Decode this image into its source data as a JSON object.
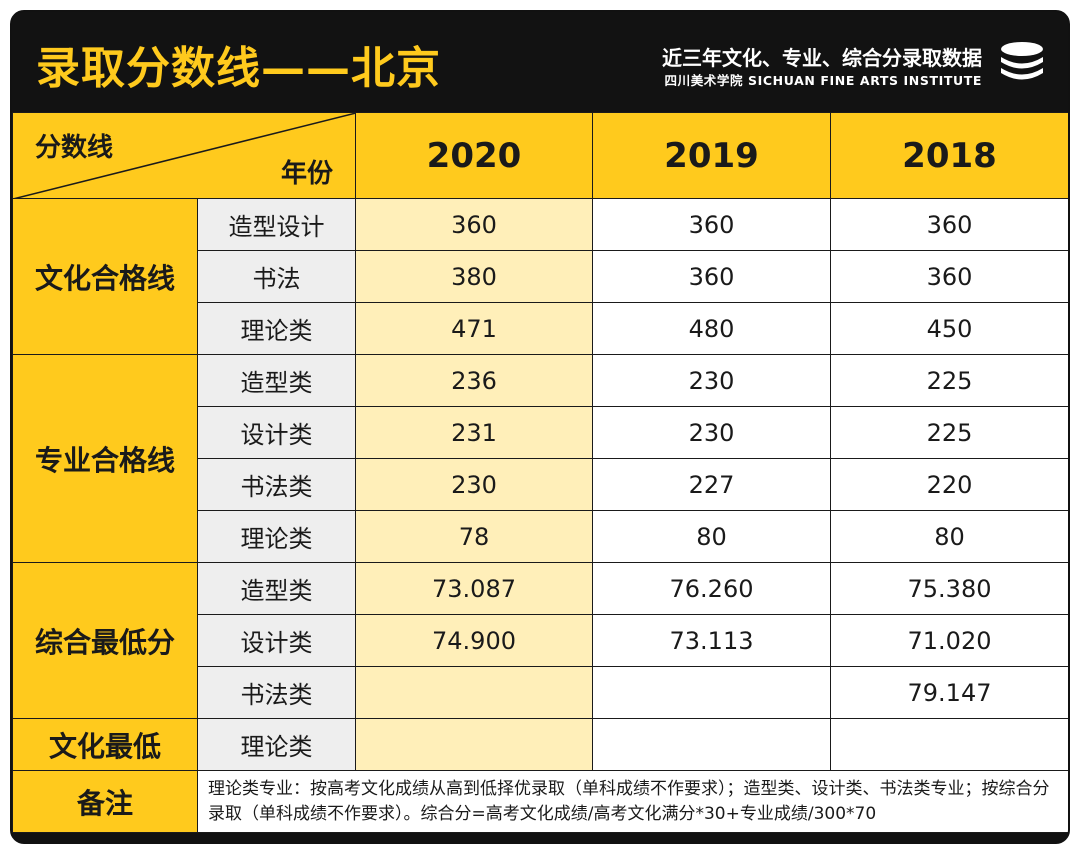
{
  "header": {
    "title": "录取分数线——北京",
    "subtitle": "近三年文化、专业、综合分录取数据",
    "org": "四川美术学院 SICHUAN FINE ARTS INSTITUTE",
    "logo_icon": "stacked-discs-logo"
  },
  "table": {
    "corner_top_left": "分数线",
    "corner_bottom_right": "年份",
    "years": [
      "2020",
      "2019",
      "2018"
    ],
    "groups": [
      {
        "name": "文化合格线",
        "rows": [
          {
            "label": "造型设计",
            "values": [
              "360",
              "360",
              "360"
            ]
          },
          {
            "label": "书法",
            "values": [
              "380",
              "360",
              "360"
            ]
          },
          {
            "label": "理论类",
            "values": [
              "471",
              "480",
              "450"
            ]
          }
        ]
      },
      {
        "name": "专业合格线",
        "rows": [
          {
            "label": "造型类",
            "values": [
              "236",
              "230",
              "225"
            ]
          },
          {
            "label": "设计类",
            "values": [
              "231",
              "230",
              "225"
            ]
          },
          {
            "label": "书法类",
            "values": [
              "230",
              "227",
              "220"
            ]
          },
          {
            "label": "理论类",
            "values": [
              "78",
              "80",
              "80"
            ]
          }
        ]
      },
      {
        "name": "综合最低分",
        "rows": [
          {
            "label": "造型类",
            "values": [
              "73.087",
              "76.260",
              "75.380"
            ]
          },
          {
            "label": "设计类",
            "values": [
              "74.900",
              "73.113",
              "71.020"
            ]
          },
          {
            "label": "书法类",
            "values": [
              "",
              "",
              "79.147"
            ]
          }
        ]
      },
      {
        "name": "文化最低",
        "rows": [
          {
            "label": "理论类",
            "values": [
              "",
              "",
              ""
            ]
          }
        ]
      }
    ],
    "notes_label": "备注",
    "notes_text": "理论类专业：按高考文化成绩从高到低择优录取（单科成绩不作要求）；造型类、设计类、书法类专业；按综合分录取（单科成绩不作要求）。综合分=高考文化成绩/高考文化满分*30+专业成绩/300*70"
  },
  "colors": {
    "accent_yellow": "#FFCA1D",
    "pale_yellow": "#FFEFB9",
    "header_black": "#121212",
    "label_grey": "#EEEEEE"
  }
}
